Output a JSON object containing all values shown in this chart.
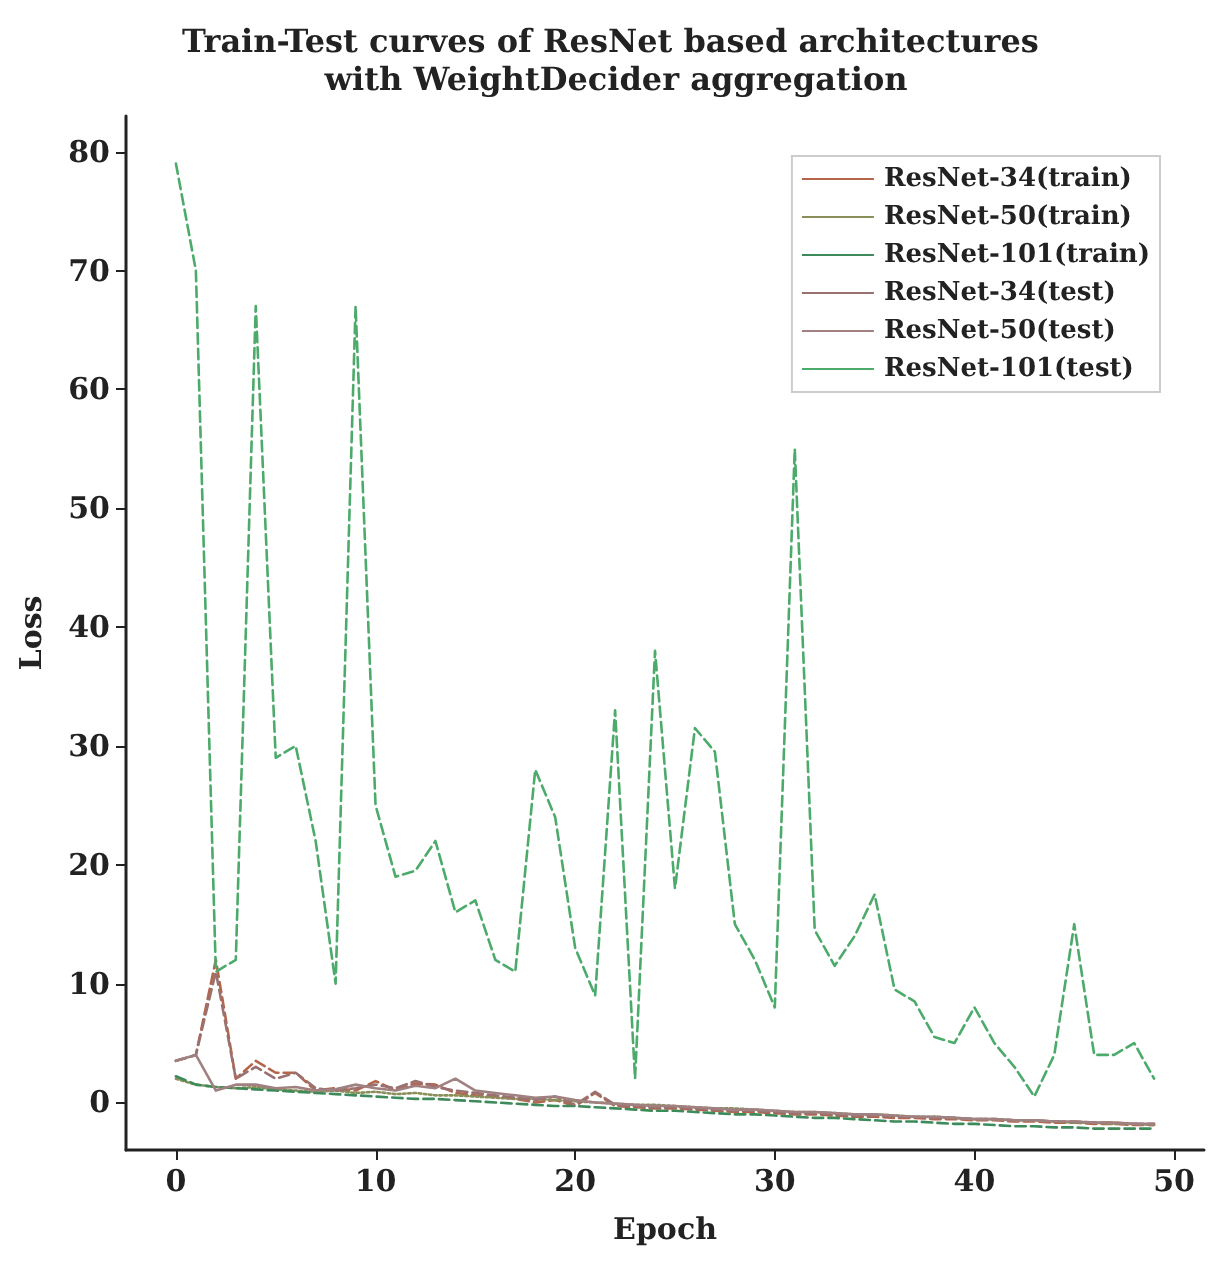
{
  "chart_data": {
    "type": "line",
    "title": "Train-Test curves of ResNet based architectures with WeightDecider aggregation",
    "xlabel": "Epoch",
    "ylabel": "Loss",
    "x": [
      0,
      1,
      2,
      3,
      4,
      5,
      6,
      7,
      8,
      9,
      10,
      11,
      12,
      13,
      14,
      15,
      16,
      17,
      18,
      19,
      20,
      21,
      22,
      23,
      24,
      25,
      26,
      27,
      28,
      29,
      30,
      31,
      32,
      33,
      34,
      35,
      36,
      37,
      38,
      39,
      40,
      41,
      42,
      43,
      44,
      45,
      46,
      47,
      48,
      49
    ],
    "xlim": [
      -2.5,
      51.5
    ],
    "xticks": [
      0,
      10,
      20,
      30,
      40,
      50
    ],
    "ylim": [
      -4,
      83
    ],
    "yticks": [
      0,
      10,
      20,
      30,
      40,
      50,
      60,
      70,
      80
    ],
    "grid": false,
    "legend": "top right",
    "marker": "none",
    "series": [
      {
        "name": "ResNet-34(train)",
        "color": "#b5654a",
        "line_style": "dashed",
        "values": [
          3.5,
          4,
          12,
          2,
          3.5,
          2.5,
          2.5,
          1,
          1.2,
          1,
          1.8,
          1,
          1.6,
          1.5,
          0.8,
          0.6,
          0.5,
          0.3,
          0,
          0.2,
          -0.3,
          0.8,
          -0.3,
          -0.4,
          -0.5,
          -0.5,
          -0.6,
          -0.7,
          -0.8,
          -0.8,
          -0.9,
          -1,
          -1,
          -1.1,
          -1.2,
          -1.2,
          -1.3,
          -1.3,
          -1.4,
          -1.4,
          -1.5,
          -1.5,
          -1.6,
          -1.6,
          -1.7,
          -1.7,
          -1.8,
          -1.8,
          -1.9,
          -1.9
        ]
      },
      {
        "name": "ResNet-50(train)",
        "color": "#8a8f5a",
        "line_style": "dotted",
        "values": [
          2,
          1.5,
          1.3,
          1.2,
          1.3,
          1.1,
          1,
          0.9,
          1,
          0.8,
          0.9,
          0.7,
          0.8,
          0.6,
          0.6,
          0.5,
          0.4,
          0.3,
          0.3,
          0.2,
          0.1,
          0,
          -0.1,
          -0.2,
          -0.2,
          -0.3,
          -0.4,
          -0.5,
          -0.5,
          -0.6,
          -0.7,
          -0.8,
          -0.8,
          -0.9,
          -1,
          -1,
          -1.1,
          -1.2,
          -1.2,
          -1.3,
          -1.4,
          -1.4,
          -1.5,
          -1.5,
          -1.6,
          -1.7,
          -1.7,
          -1.8,
          -1.8,
          -1.9
        ]
      },
      {
        "name": "ResNet-101(train)",
        "color": "#3d8a5a",
        "line_style": "dashed",
        "values": [
          2.2,
          1.5,
          1.3,
          1.2,
          1.1,
          1,
          0.9,
          0.8,
          0.7,
          0.6,
          0.5,
          0.4,
          0.3,
          0.3,
          0.2,
          0.1,
          0,
          -0.1,
          -0.2,
          -0.3,
          -0.3,
          -0.4,
          -0.5,
          -0.6,
          -0.7,
          -0.7,
          -0.8,
          -0.9,
          -1,
          -1,
          -1.1,
          -1.2,
          -1.3,
          -1.3,
          -1.4,
          -1.5,
          -1.6,
          -1.6,
          -1.7,
          -1.8,
          -1.8,
          -1.9,
          -2,
          -2,
          -2.1,
          -2.1,
          -2.2,
          -2.2,
          -2.2,
          -2.2
        ]
      },
      {
        "name": "ResNet-34(test)",
        "color": "#9a7070",
        "line_style": "dashed",
        "values": [
          3.5,
          4,
          11,
          2,
          3,
          2,
          2.5,
          1.2,
          1,
          1.2,
          1.5,
          1.2,
          1.8,
          1.3,
          1,
          0.8,
          0.6,
          0.4,
          0.2,
          0.5,
          -0.2,
          0.9,
          -0.2,
          -0.3,
          -0.4,
          -0.4,
          -0.5,
          -0.6,
          -0.7,
          -0.7,
          -0.8,
          -0.9,
          -0.9,
          -1,
          -1.1,
          -1.1,
          -1.2,
          -1.2,
          -1.3,
          -1.3,
          -1.4,
          -1.4,
          -1.5,
          -1.5,
          -1.6,
          -1.6,
          -1.7,
          -1.7,
          -1.8,
          -1.8
        ]
      },
      {
        "name": "ResNet-50(test)",
        "color": "#a08080",
        "line_style": "solid",
        "values": [
          3.5,
          4,
          1,
          1.5,
          1.5,
          1.2,
          1.3,
          1,
          1.1,
          1.5,
          1.2,
          1,
          1.4,
          1.2,
          2,
          1,
          0.8,
          0.6,
          0.4,
          0.5,
          0.2,
          0,
          -0.1,
          -0.2,
          -0.3,
          -0.3,
          -0.4,
          -0.5,
          -0.6,
          -0.6,
          -0.7,
          -0.8,
          -0.8,
          -0.9,
          -1,
          -1,
          -1.1,
          -1.2,
          -1.2,
          -1.3,
          -1.4,
          -1.4,
          -1.5,
          -1.5,
          -1.6,
          -1.6,
          -1.7,
          -1.7,
          -1.8,
          -1.8
        ]
      },
      {
        "name": "ResNet-101(test)",
        "color": "#4caa6a",
        "line_style": "dashed",
        "values": [
          79,
          70,
          11,
          12,
          67,
          29,
          30,
          22,
          10,
          67,
          25,
          19,
          19.5,
          22,
          16,
          17,
          12,
          11,
          28,
          24,
          13,
          9,
          33,
          2,
          38,
          18,
          31.5,
          29.5,
          15,
          12,
          8,
          55,
          14.5,
          11.5,
          14,
          17.5,
          9.5,
          8.5,
          5.5,
          5,
          8,
          5,
          3,
          0.5,
          4,
          15,
          4,
          4,
          5,
          2
        ]
      }
    ]
  }
}
